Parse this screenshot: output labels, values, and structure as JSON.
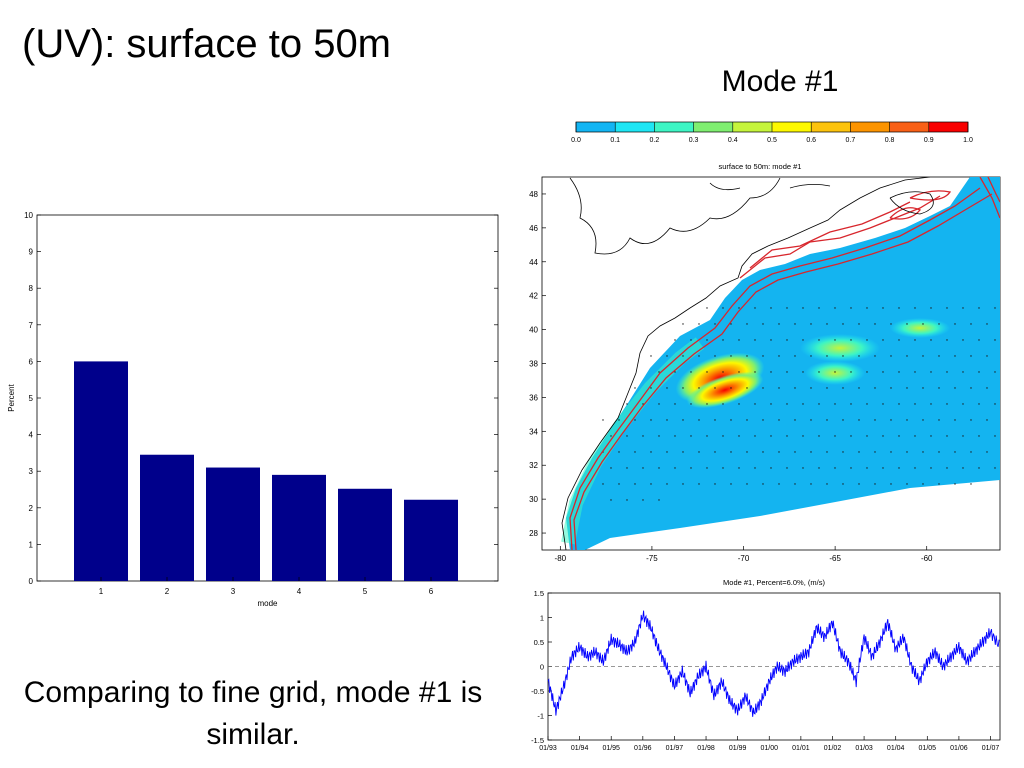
{
  "slide": {
    "title": "(UV): surface to 50m",
    "mode_heading": "Mode #1",
    "caption": "Comparing to fine grid, mode #1 is similar."
  },
  "colors": {
    "bar": "#00008b",
    "timeseries": "#0000ff",
    "colormap": [
      "#13b5f3",
      "#1ee6f4",
      "#3df5c4",
      "#7fee70",
      "#c5f43c",
      "#fdf800",
      "#fcc30d",
      "#fc9400",
      "#f86016",
      "#f80000"
    ],
    "map_ocean": "#14b4f0",
    "map_contour": "#d8262c"
  },
  "chart_data": [
    {
      "id": "variance_bar",
      "type": "bar",
      "title": "",
      "xlabel": "mode",
      "ylabel": "Percent",
      "categories": [
        "1",
        "2",
        "3",
        "4",
        "5",
        "6"
      ],
      "values": [
        6.0,
        3.45,
        3.1,
        2.9,
        2.52,
        2.22
      ],
      "ylim": [
        0,
        10
      ],
      "yticks": [
        "0",
        "1",
        "2",
        "3",
        "4",
        "5",
        "6",
        "7",
        "8",
        "9",
        "10"
      ],
      "grid": false
    },
    {
      "id": "colorbar",
      "type": "heatmap",
      "tick_labels": [
        "0.0",
        "0.1",
        "0.2",
        "0.3",
        "0.4",
        "0.5",
        "0.6",
        "0.7",
        "0.8",
        "0.9",
        "1.0"
      ],
      "range": [
        0.0,
        1.0
      ]
    },
    {
      "id": "spatial_map",
      "type": "heatmap",
      "title": "surface to 50m: mode #1",
      "xlim": [
        -81,
        -56
      ],
      "ylim": [
        27,
        49
      ],
      "xticks": [
        "-80",
        "-75",
        "-70",
        "-65",
        "-60"
      ],
      "yticks": [
        "28",
        "30",
        "32",
        "34",
        "36",
        "38",
        "40",
        "42",
        "44",
        "46",
        "48"
      ]
    },
    {
      "id": "timeseries",
      "type": "line",
      "title": "Mode #1, Percent=6.0%, (m/s)",
      "ylim": [
        -1.5,
        1.5
      ],
      "yticks": [
        "-1.5",
        "-1",
        "-0.5",
        "0",
        "0.5",
        "1",
        "1.5"
      ],
      "xticks": [
        "01/93",
        "01/94",
        "01/95",
        "01/96",
        "01/97",
        "01/98",
        "01/99",
        "01/00",
        "01/01",
        "01/02",
        "01/03",
        "01/04",
        "01/05",
        "01/06",
        "01/07"
      ],
      "x": [
        0,
        0.25,
        0.5,
        0.75,
        1,
        1.25,
        1.5,
        1.75,
        2,
        2.25,
        2.5,
        2.75,
        3,
        3.25,
        3.5,
        3.75,
        4,
        4.25,
        4.5,
        4.75,
        5,
        5.25,
        5.5,
        5.75,
        6,
        6.25,
        6.5,
        6.75,
        7,
        7.25,
        7.5,
        7.75,
        8,
        8.25,
        8.5,
        8.75,
        9,
        9.25,
        9.5,
        9.75,
        10,
        10.25,
        10.5,
        10.75,
        11,
        11.25,
        11.5,
        11.75,
        12,
        12.25,
        12.5,
        12.75,
        13,
        13.25,
        13.5,
        13.75,
        14,
        14.3
      ],
      "y": [
        -0.3,
        -0.9,
        -0.4,
        0.2,
        0.4,
        0.2,
        0.3,
        0.1,
        0.55,
        0.45,
        0.3,
        0.5,
        1.05,
        0.8,
        0.35,
        0.0,
        -0.4,
        -0.1,
        -0.55,
        -0.2,
        0.0,
        -0.6,
        -0.3,
        -0.7,
        -0.9,
        -0.6,
        -0.95,
        -0.7,
        -0.3,
        0.0,
        -0.1,
        0.1,
        0.2,
        0.3,
        0.8,
        0.6,
        0.9,
        0.3,
        0.1,
        -0.3,
        0.6,
        0.2,
        0.5,
        0.9,
        0.35,
        0.6,
        0.0,
        -0.3,
        0.1,
        0.3,
        0.0,
        0.2,
        0.4,
        0.1,
        0.3,
        0.5,
        0.7,
        0.4
      ]
    }
  ]
}
